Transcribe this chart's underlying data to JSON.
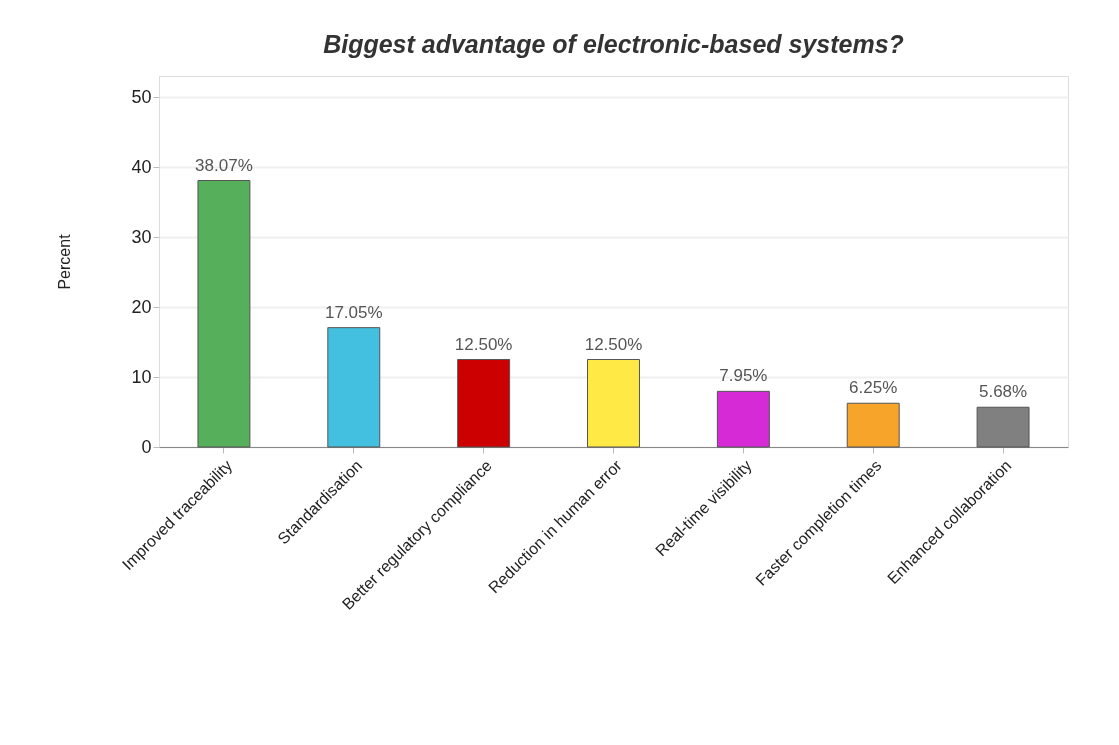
{
  "chart_data": {
    "type": "bar",
    "title": "Biggest advantage of electronic-based systems?",
    "ylabel": "Percent",
    "categories": [
      "Improved traceability",
      "Standardisation",
      "Better regulatory compliance",
      "Reduction in human error",
      "Real-time visibility",
      "Faster completion times",
      "Enhanced collaboration"
    ],
    "values": [
      38.07,
      17.05,
      12.5,
      12.5,
      7.95,
      6.25,
      5.68
    ],
    "colors": [
      "#55af5b",
      "#43c0df",
      "#cc0000",
      "#ffe945",
      "#d62ad6",
      "#f7a52a",
      "#808080"
    ],
    "value_labels": [
      "38.07%",
      "17.05%",
      "12.50%",
      "12.50%",
      "7.95%",
      "6.25%",
      "5.68%"
    ],
    "ylim": [
      0,
      53
    ],
    "yticks": [
      0,
      10,
      20,
      30,
      40,
      50
    ],
    "grid": "y"
  }
}
